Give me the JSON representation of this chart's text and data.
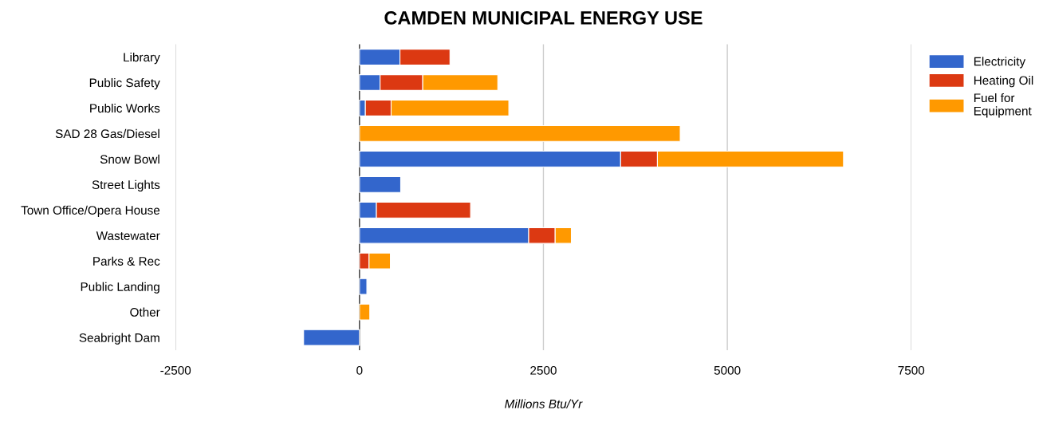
{
  "chart_data": {
    "type": "bar",
    "orientation": "horizontal",
    "stacked": true,
    "title": "CAMDEN MUNICIPAL ENERGY USE",
    "xlabel": "Millions Btu/Yr",
    "categories": [
      "Library",
      "Public Safety",
      "Public Works",
      "SAD 28 Gas/Diesel",
      "Snow Bowl",
      "Street Lights",
      "Town Office/Opera House",
      "Wastewater",
      "Parks & Rec",
      "Public Landing",
      "Other",
      "Seabright Dam"
    ],
    "series": [
      {
        "name": "Electricity",
        "color": "#3366cc",
        "values": [
          550,
          280,
          80,
          null,
          3550,
          560,
          230,
          2300,
          null,
          100,
          null,
          -760
        ]
      },
      {
        "name": "Heating Oil",
        "color": "#dc3912",
        "values": [
          680,
          580,
          350,
          null,
          500,
          null,
          1280,
          360,
          130,
          null,
          null,
          null
        ]
      },
      {
        "name": "Fuel for\nEquipment",
        "color": "#ff9900",
        "values": [
          null,
          1020,
          1600,
          4360,
          2530,
          null,
          null,
          220,
          290,
          null,
          140,
          null
        ]
      }
    ],
    "xlim": [
      -2500,
      7500
    ],
    "xticks": [
      -2500,
      0,
      2500,
      5000,
      7500
    ],
    "grid": "x",
    "legend": "top right"
  }
}
